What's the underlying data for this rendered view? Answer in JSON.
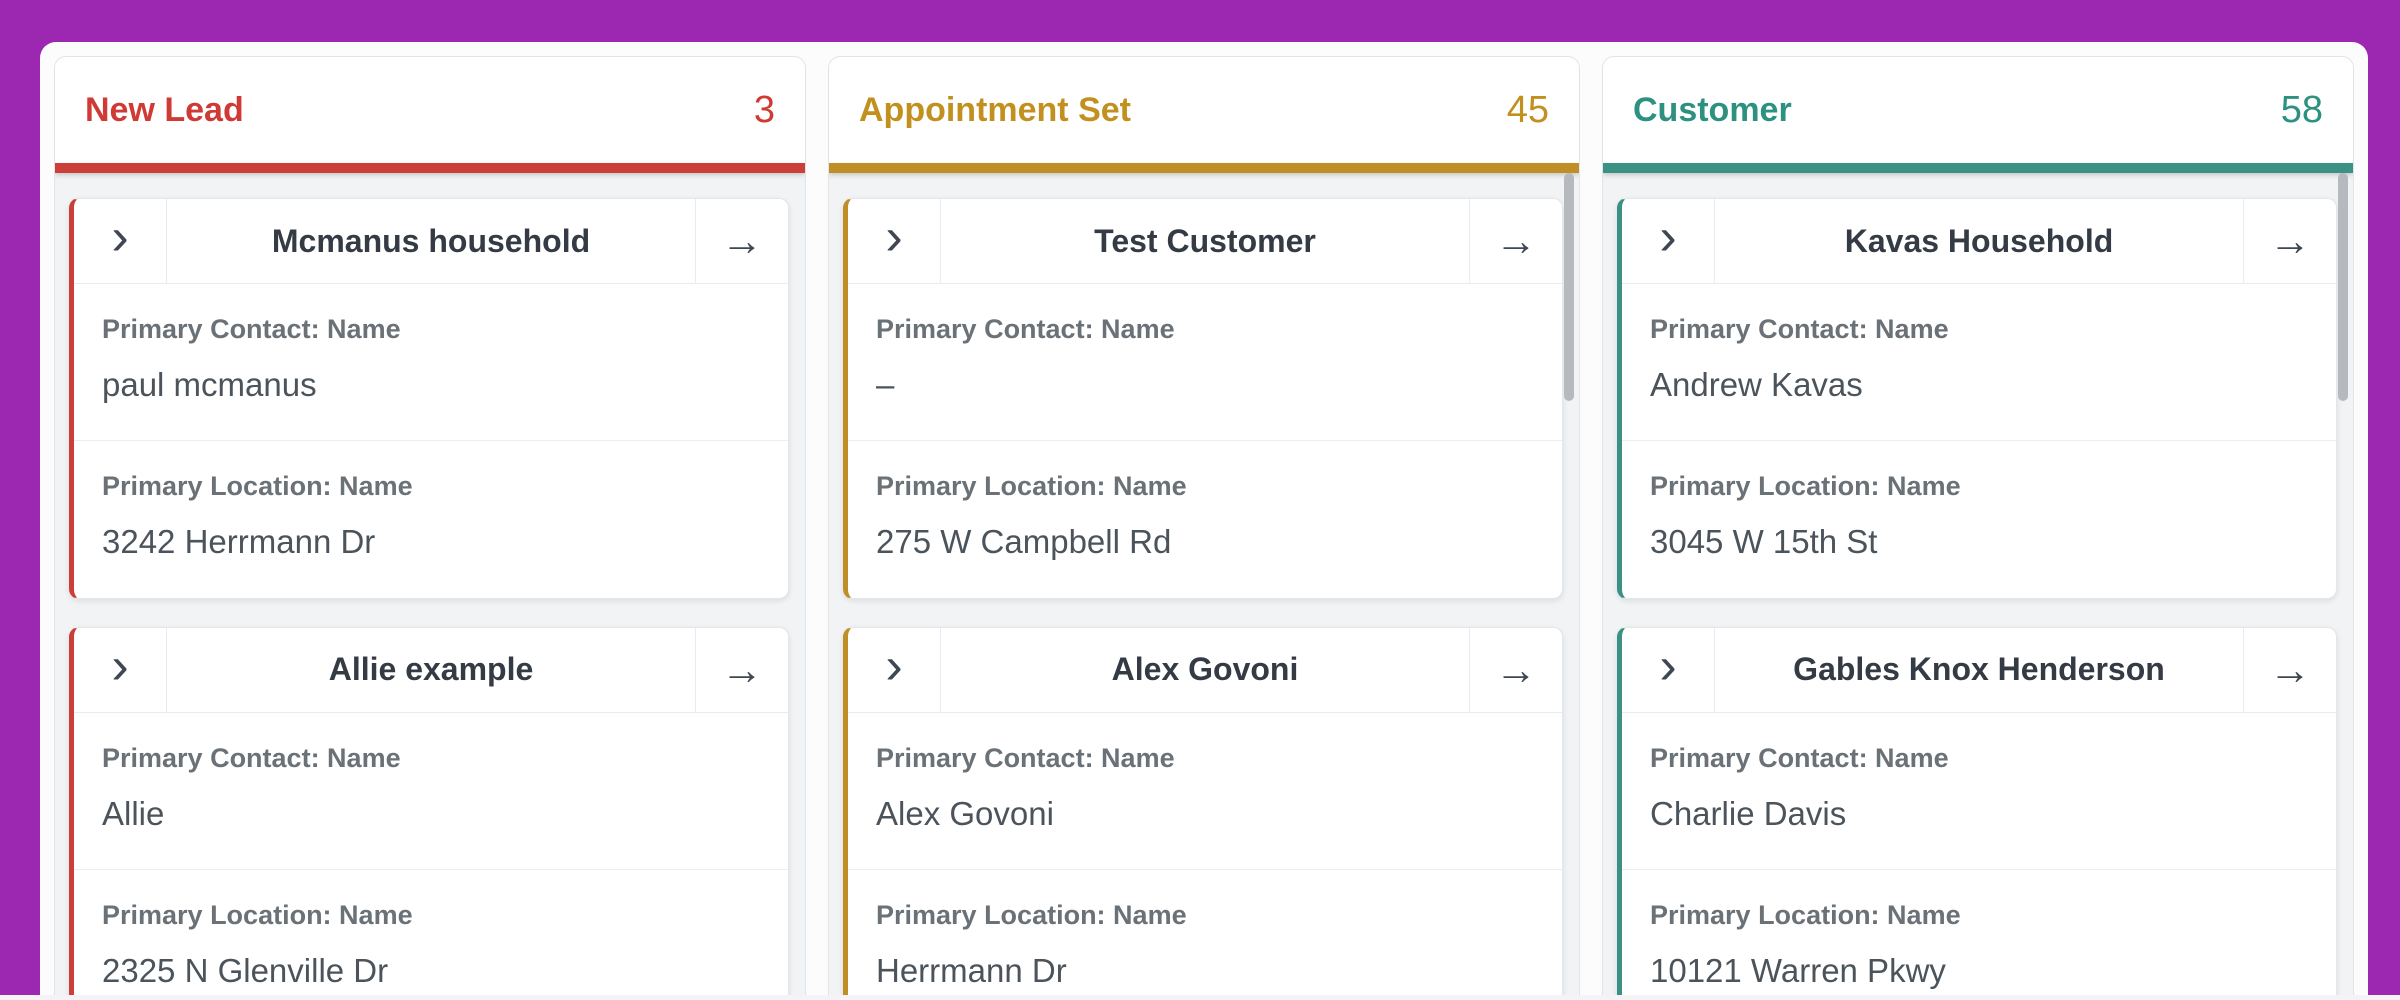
{
  "window": {
    "frame_color": "#9c27b0",
    "panel_bg": "#fcfcfd"
  },
  "icons": {
    "collapse_chevron": "›",
    "open_arrow": "→"
  },
  "board": {
    "columns": [
      {
        "title": "New Lead",
        "count": "3",
        "accent": "#d03a34",
        "strip": "#cc3f39",
        "scrollbar": "false",
        "cards": [
          {
            "title": "Mcmanus household",
            "sections": [
              {
                "label": "Primary Contact: Name",
                "value": "paul mcmanus"
              },
              {
                "label": "Primary Location: Name",
                "value": "3242 Herrmann Dr"
              }
            ]
          },
          {
            "title": "Allie example",
            "sections": [
              {
                "label": "Primary Contact: Name",
                "value": "Allie"
              },
              {
                "label": "Primary Location: Name",
                "value": "2325 N Glenville Dr"
              }
            ]
          }
        ]
      },
      {
        "title": "Appointment Set",
        "count": "45",
        "accent": "#c2901f",
        "strip": "#bf8e26",
        "scrollbar": "true",
        "cards": [
          {
            "title": "Test Customer",
            "sections": [
              {
                "label": "Primary Contact: Name",
                "value": "–"
              },
              {
                "label": "Primary Location: Name",
                "value": "275 W Campbell Rd"
              }
            ]
          },
          {
            "title": "Alex Govoni",
            "sections": [
              {
                "label": "Primary Contact: Name",
                "value": "Alex Govoni"
              },
              {
                "label": "Primary Location: Name",
                "value": "Herrmann Dr"
              }
            ]
          }
        ]
      },
      {
        "title": "Customer",
        "count": "58",
        "accent": "#2d9182",
        "strip": "#3a9184",
        "scrollbar": "true",
        "cards": [
          {
            "title": "Kavas Household",
            "sections": [
              {
                "label": "Primary Contact: Name",
                "value": "Andrew Kavas"
              },
              {
                "label": "Primary Location: Name",
                "value": "3045 W 15th St"
              }
            ]
          },
          {
            "title": "Gables Knox Henderson",
            "sections": [
              {
                "label": "Primary Contact: Name",
                "value": "Charlie Davis"
              },
              {
                "label": "Primary Location: Name",
                "value": "10121 Warren Pkwy"
              }
            ]
          }
        ]
      }
    ]
  }
}
